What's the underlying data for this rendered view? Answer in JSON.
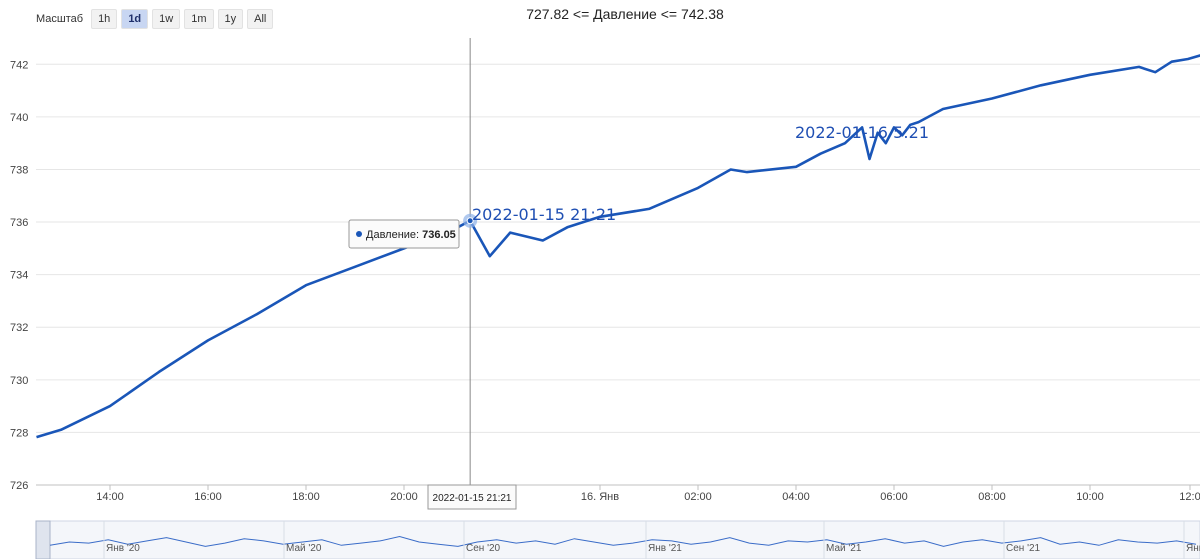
{
  "toolbar": {
    "zoom_label": "Масштаб",
    "buttons": [
      "1h",
      "1d",
      "1w",
      "1m",
      "1y",
      "All"
    ],
    "active": "1d"
  },
  "chart_data": {
    "type": "line",
    "title": "727.82 <= Давление <= 742.38",
    "xlabel": "",
    "ylabel": "",
    "ylim": [
      726,
      743
    ],
    "y_ticks": [
      726,
      728,
      730,
      732,
      734,
      736,
      738,
      740,
      742
    ],
    "x_tick_labels": [
      "14:00",
      "16:00",
      "18:00",
      "20:00",
      "16. Янв",
      "02:00",
      "04:00",
      "06:00",
      "08:00",
      "10:00",
      "12:0"
    ],
    "grid": true,
    "series": [
      {
        "color": "#1a56b8",
        "x": [
          "2022-01-15 12:30",
          "2022-01-15 13:00",
          "2022-01-15 14:00",
          "2022-01-15 15:00",
          "2022-01-15 16:00",
          "2022-01-15 17:00",
          "2022-01-15 18:00",
          "2022-01-15 19:00",
          "2022-01-15 20:00",
          "2022-01-15 21:00",
          "2022-01-15 21:21",
          "2022-01-15 21:45",
          "2022-01-15 22:10",
          "2022-01-15 22:50",
          "2022-01-15 23:20",
          "2022-01-16 00:00",
          "2022-01-16 01:00",
          "2022-01-16 02:00",
          "2022-01-16 02:40",
          "2022-01-16 03:00",
          "2022-01-16 04:00",
          "2022-01-16 04:30",
          "2022-01-16 05:00",
          "2022-01-16 05:21",
          "2022-01-16 05:30",
          "2022-01-16 05:40",
          "2022-01-16 05:50",
          "2022-01-16 06:00",
          "2022-01-16 06:10",
          "2022-01-16 06:20",
          "2022-01-16 06:30",
          "2022-01-16 07:00",
          "2022-01-16 08:00",
          "2022-01-16 09:00",
          "2022-01-16 10:00",
          "2022-01-16 11:00",
          "2022-01-16 11:20",
          "2022-01-16 11:40",
          "2022-01-16 12:00",
          "2022-01-16 12:20"
        ],
        "values": [
          727.82,
          728.1,
          729.0,
          730.3,
          731.5,
          732.5,
          733.6,
          734.3,
          735.0,
          735.7,
          736.05,
          734.7,
          735.6,
          735.3,
          735.8,
          736.2,
          736.5,
          737.3,
          738.0,
          737.9,
          738.1,
          738.6,
          739.0,
          739.6,
          738.4,
          739.4,
          739.0,
          739.6,
          739.3,
          739.7,
          739.8,
          740.3,
          740.7,
          741.2,
          741.6,
          741.9,
          741.7,
          742.1,
          742.2,
          742.38
        ]
      }
    ],
    "highlight": {
      "x": "2022-01-15 21:21",
      "value": 736.05
    },
    "tooltip": {
      "series_name": "Давление",
      "value_text": "736.05"
    },
    "crosshair_label": "2022-01-15 21:21",
    "annotations": [
      {
        "text": "2022-01-15 21:21",
        "x": "2022-01-15 21:21",
        "y": 736.05
      },
      {
        "text": "2022-01-16 5:21",
        "x": "2022-01-16 05:21",
        "y": 739.6
      }
    ],
    "navigator": {
      "x_tick_labels": [
        "Янв '20",
        "Май '20",
        "Сен '20",
        "Янв '21",
        "Май '21",
        "Сен '21",
        "Янв"
      ],
      "values": [
        0.35,
        0.5,
        0.45,
        0.6,
        0.4,
        0.55,
        0.7,
        0.5,
        0.3,
        0.45,
        0.65,
        0.55,
        0.4,
        0.5,
        0.6,
        0.35,
        0.45,
        0.55,
        0.75,
        0.5,
        0.4,
        0.3,
        0.5,
        0.6,
        0.45,
        0.55,
        0.4,
        0.65,
        0.5,
        0.35,
        0.45,
        0.6,
        0.55,
        0.4,
        0.5,
        0.7,
        0.45,
        0.35,
        0.55,
        0.5,
        0.6,
        0.4,
        0.5,
        0.65,
        0.45,
        0.55,
        0.3,
        0.5,
        0.6,
        0.45,
        0.55,
        0.7,
        0.4,
        0.5,
        0.35,
        0.6,
        0.5,
        0.45,
        0.55,
        0.4
      ]
    }
  }
}
